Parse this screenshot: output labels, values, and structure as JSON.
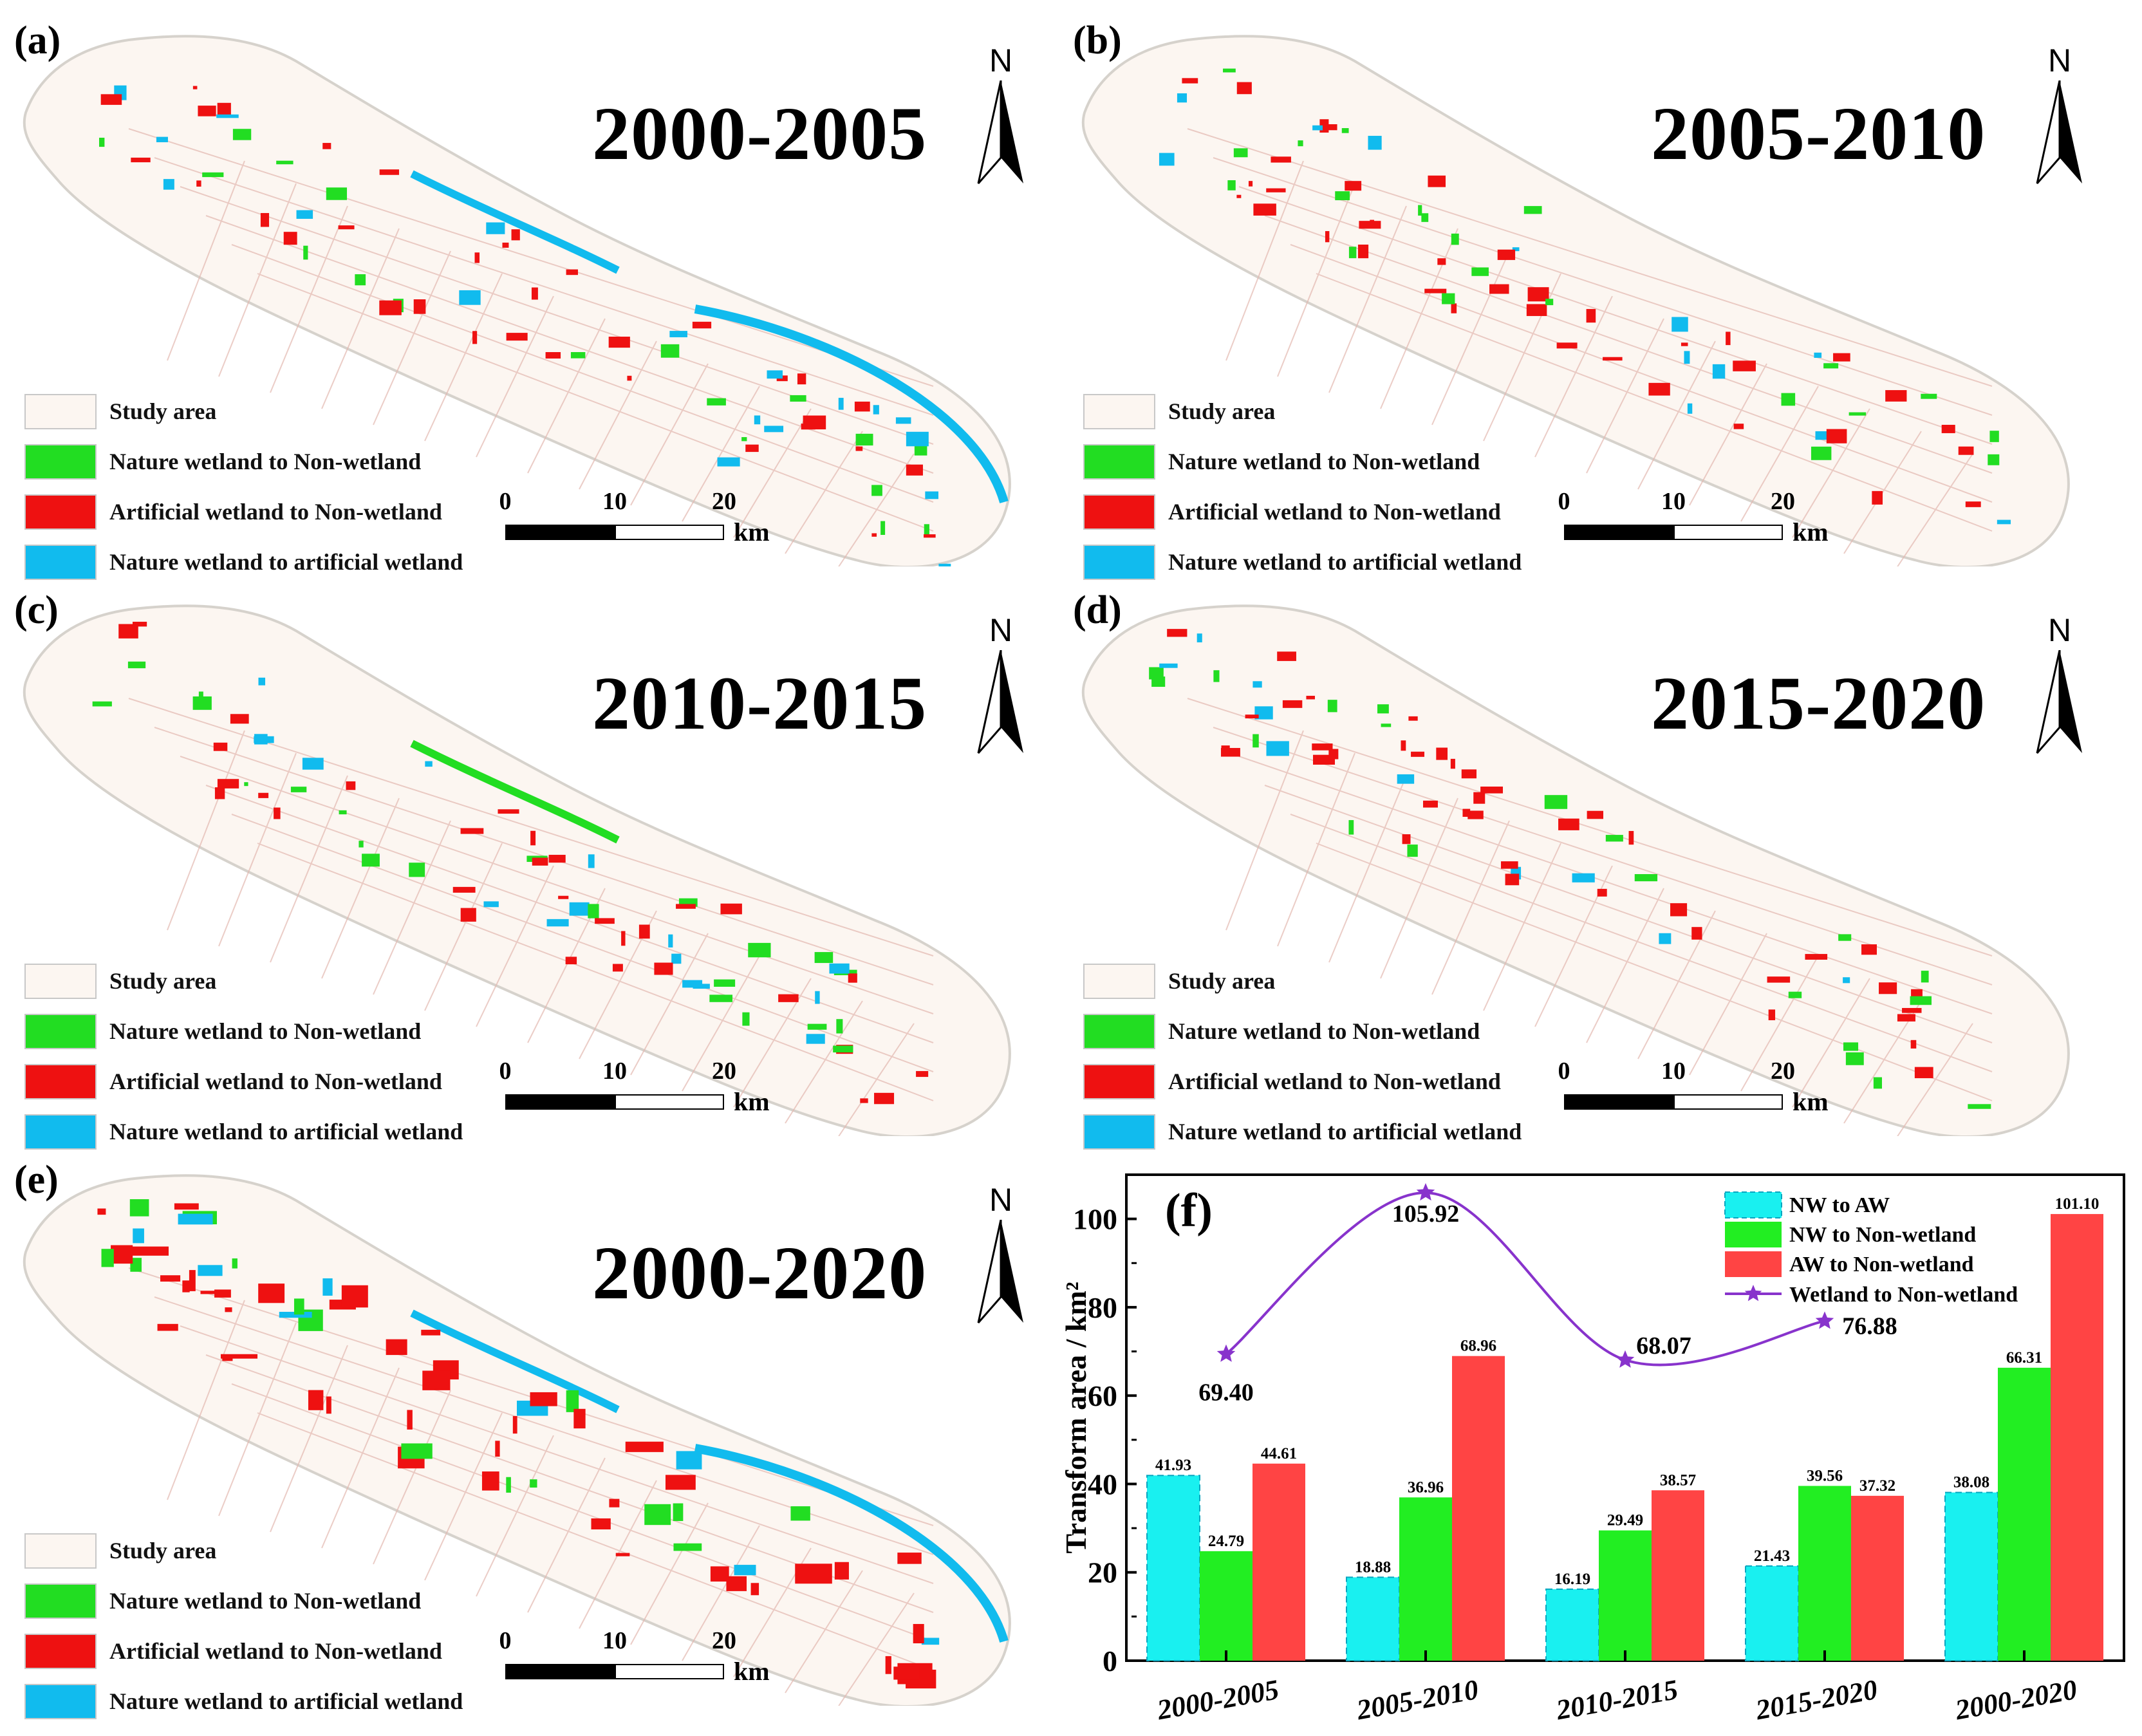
{
  "panels": [
    {
      "letter": "(a)",
      "period": "2000-2005"
    },
    {
      "letter": "(b)",
      "period": "2005-2010"
    },
    {
      "letter": "(c)",
      "period": "2010-2015"
    },
    {
      "letter": "(d)",
      "period": "2015-2020"
    },
    {
      "letter": "(e)",
      "period": "2000-2020"
    }
  ],
  "north_label": "N",
  "legend": {
    "study_area": "Study area",
    "nw_to_nonwetland": "Nature wetland to Non-wetland",
    "aw_to_nonwetland": "Artificial wetland to Non-wetland",
    "nw_to_aw": "Nature wetland to artificial wetland"
  },
  "scalebar": {
    "ticks": [
      "0",
      "10",
      "20"
    ],
    "unit": "km"
  },
  "colors": {
    "study_area": "#fcf6f1",
    "study_outline": "#d6d2cc",
    "nw_to_nonwetland": "#22dd22",
    "aw_to_nonwetland": "#ee1111",
    "nw_to_aw": "#11bbee",
    "bar_cyan": "#19f0f0",
    "bar_green": "#22ee22",
    "bar_red": "#ff4444",
    "line_purple": "#8833cc"
  },
  "chart_data": {
    "type": "bar",
    "panel_letter": "(f)",
    "ylabel": "Transform area / km²",
    "ylim": [
      0,
      110
    ],
    "yticks": [
      0,
      20,
      40,
      60,
      80,
      100
    ],
    "categories": [
      "2000-2005",
      "2005-2010",
      "2010-2015",
      "2015-2020",
      "2000-2020"
    ],
    "series": [
      {
        "name": "NW to AW",
        "values": [
          41.93,
          18.88,
          16.19,
          21.43,
          38.08
        ],
        "labels": [
          "41.93",
          "18.88",
          "16.19",
          "21.43",
          "38.08"
        ]
      },
      {
        "name": "NW to Non-wetland",
        "values": [
          24.79,
          36.96,
          29.49,
          39.56,
          66.31
        ],
        "labels": [
          "24.79",
          "36.96",
          "29.49",
          "39.56",
          "66.31"
        ]
      },
      {
        "name": "AW to Non-wetland",
        "values": [
          44.61,
          68.96,
          38.57,
          37.32,
          101.1
        ],
        "labels": [
          "44.61",
          "68.96",
          "38.57",
          "37.32",
          "101.10"
        ]
      }
    ],
    "line": {
      "name": "Wetland to Non-wetland",
      "categories": [
        "2000-2005",
        "2005-2010",
        "2010-2015",
        "2015-2020"
      ],
      "values": [
        69.4,
        105.92,
        68.07,
        76.88
      ],
      "labels": [
        "69.40",
        "105.92",
        "68.07",
        "76.88"
      ]
    },
    "legend_position": "top-right"
  }
}
